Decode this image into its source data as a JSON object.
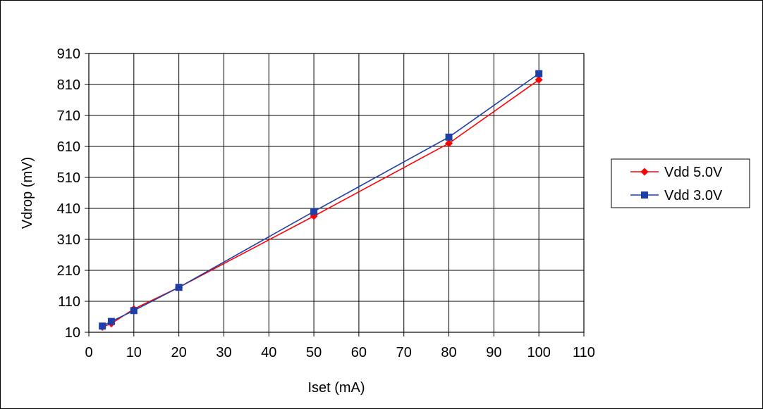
{
  "chart_data": {
    "type": "line",
    "title": "",
    "xlabel": "Iset (mA)",
    "ylabel": "Vdrop (mV)",
    "xlim": [
      0,
      110
    ],
    "ylim": [
      10,
      910
    ],
    "x_ticks": [
      0,
      10,
      20,
      30,
      40,
      50,
      60,
      70,
      80,
      90,
      100,
      110
    ],
    "y_ticks": [
      10,
      110,
      210,
      310,
      410,
      510,
      610,
      710,
      810,
      910
    ],
    "grid": true,
    "legend_position": "right",
    "series": [
      {
        "name": "Vdd 5.0V",
        "color": "#ff0000",
        "marker": "diamond",
        "x": [
          3,
          5,
          10,
          20,
          50,
          80,
          100
        ],
        "y": [
          27,
          38,
          85,
          155,
          385,
          620,
          825
        ]
      },
      {
        "name": "Vdd 3.0V",
        "color": "#1f3fa8",
        "marker": "square",
        "x": [
          3,
          5,
          10,
          20,
          50,
          80,
          100
        ],
        "y": [
          30,
          45,
          80,
          155,
          400,
          640,
          845
        ]
      }
    ]
  }
}
